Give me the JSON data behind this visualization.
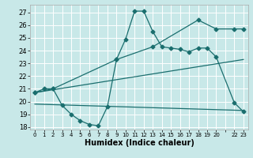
{
  "bg_color": "#c8e8e8",
  "grid_color": "#ffffff",
  "line_color": "#1a6e6e",
  "xlim": [
    -0.5,
    23.5
  ],
  "ylim": [
    17.8,
    27.6
  ],
  "yticks": [
    18,
    19,
    20,
    21,
    22,
    23,
    24,
    25,
    26,
    27
  ],
  "xlabel": "Humidex (Indice chaleur)",
  "xtick_labels": [
    "0",
    "1",
    "2",
    "3",
    "4",
    "5",
    "6",
    "7",
    "8",
    "9",
    "10",
    "11",
    "12",
    "13",
    "14",
    "15",
    "16",
    "17",
    "18",
    "19",
    "20",
    "",
    "22",
    "23"
  ],
  "line1_x": [
    0,
    1,
    2,
    3,
    4,
    5,
    6,
    7,
    8,
    9,
    10,
    11,
    12,
    13,
    14,
    15,
    16,
    17,
    18,
    19,
    20,
    22,
    23
  ],
  "line1_y": [
    20.7,
    21.0,
    21.0,
    19.7,
    19.0,
    18.5,
    18.2,
    18.1,
    19.6,
    23.3,
    24.9,
    27.1,
    27.1,
    25.5,
    24.3,
    24.2,
    24.1,
    23.9,
    24.2,
    24.2,
    23.5,
    19.9,
    19.2
  ],
  "line2_x": [
    0,
    2,
    9,
    13,
    18,
    20,
    22,
    23
  ],
  "line2_y": [
    20.7,
    21.0,
    23.3,
    24.3,
    26.4,
    25.7,
    25.7,
    25.7
  ],
  "line3_x": [
    0,
    23
  ],
  "line3_y": [
    20.7,
    23.3
  ],
  "line4_x": [
    0,
    23
  ],
  "line4_y": [
    19.8,
    19.3
  ]
}
